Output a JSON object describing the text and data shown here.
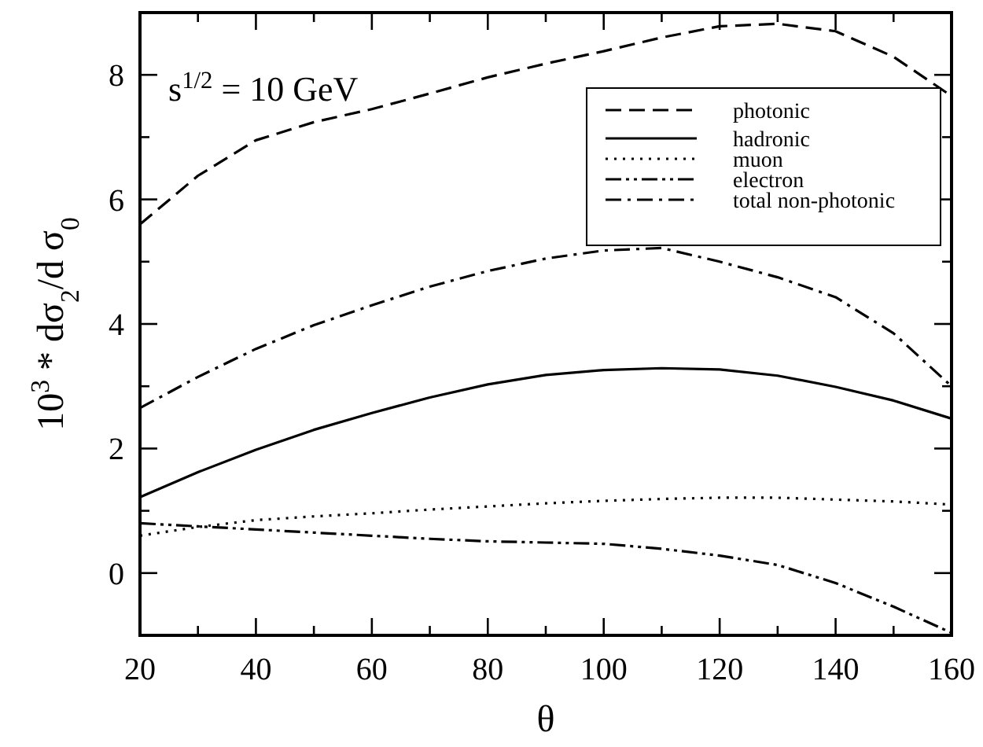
{
  "chart_data": {
    "type": "line",
    "xlabel": "θ",
    "ylabel": "10$^{3}$ * dσ$_{2}$/d σ$_{0}$",
    "annotations": [
      "s$^{1/2}$ = 10 GeV"
    ],
    "xlim": [
      20,
      160
    ],
    "ylim": [
      -1,
      9
    ],
    "xticks": [
      20,
      {
        "value": 30,
        "label": null
      },
      40,
      {
        "value": 50,
        "label": null
      },
      60,
      {
        "value": 70,
        "label": null
      },
      80,
      {
        "value": 90,
        "label": null
      },
      100,
      {
        "value": 110,
        "label": null
      },
      120,
      {
        "value": 130,
        "label": null
      },
      140,
      {
        "value": 150,
        "label": null
      },
      160
    ],
    "yticks": [
      0,
      {
        "value": 1,
        "label": null
      },
      2,
      {
        "value": 3,
        "label": null
      },
      4,
      {
        "value": 5,
        "label": null
      },
      6,
      {
        "value": 7,
        "label": null
      },
      8
    ],
    "x": [
      20,
      30,
      40,
      50,
      60,
      70,
      80,
      90,
      100,
      110,
      120,
      130,
      140,
      150,
      160
    ],
    "legend": "top right",
    "grid": false,
    "marker": "none",
    "series": [
      {
        "name": "photonic",
        "color": "#000000",
        "line_style": "dashed",
        "values": [
          5.6,
          6.38,
          6.95,
          7.24,
          7.45,
          7.7,
          7.96,
          8.18,
          8.38,
          8.6,
          8.78,
          8.82,
          8.7,
          8.29,
          7.66
        ]
      },
      {
        "name": "hadronic",
        "color": "#000000",
        "line_style": "solid",
        "values": [
          1.22,
          1.62,
          1.98,
          2.3,
          2.57,
          2.82,
          3.03,
          3.18,
          3.26,
          3.29,
          3.27,
          3.17,
          2.99,
          2.77,
          2.48
        ]
      },
      {
        "name": "muon",
        "color": "#000000",
        "line_style": "dotted",
        "values": [
          0.6,
          0.74,
          0.85,
          0.91,
          0.96,
          1.02,
          1.07,
          1.12,
          1.16,
          1.19,
          1.21,
          1.21,
          1.18,
          1.15,
          1.1
        ]
      },
      {
        "name": "electron",
        "color": "#000000",
        "line_style": "dashdotdot",
        "values": [
          0.8,
          0.75,
          0.7,
          0.65,
          0.6,
          0.55,
          0.51,
          0.49,
          0.47,
          0.39,
          0.28,
          0.13,
          -0.16,
          -0.54,
          -0.96
        ]
      },
      {
        "name": "total non-photonic",
        "color": "#000000",
        "line_style": "dashdot",
        "values": [
          2.65,
          3.15,
          3.6,
          3.98,
          4.3,
          4.6,
          4.85,
          5.05,
          5.18,
          5.22,
          5.0,
          4.75,
          4.43,
          3.85,
          3.0
        ]
      }
    ]
  }
}
